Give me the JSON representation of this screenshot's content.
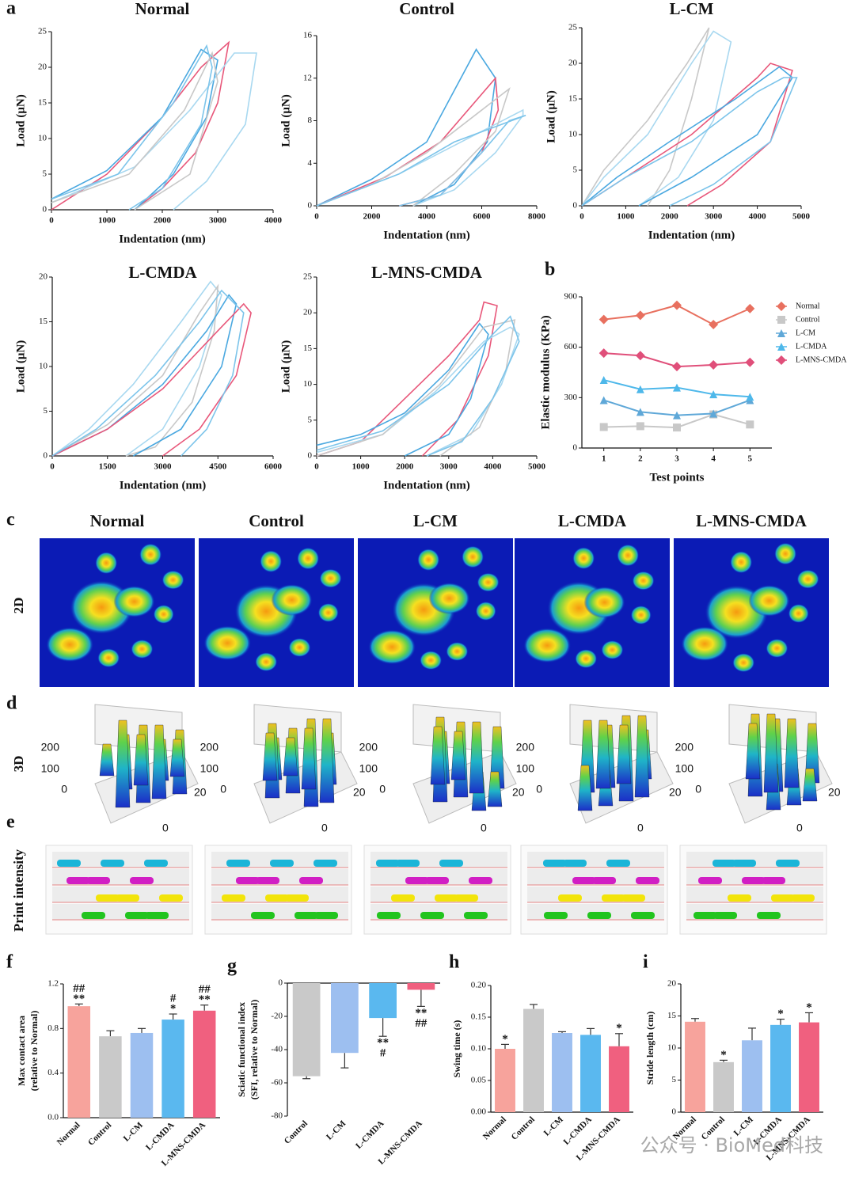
{
  "figure": {
    "panel_labels": [
      "a",
      "b",
      "c",
      "d",
      "e",
      "f",
      "g",
      "h",
      "i"
    ],
    "groups": [
      "Normal",
      "Control",
      "L-CM",
      "L-CMDA",
      "L-MNS-CMDA"
    ],
    "row_labels": [
      "2D",
      "3D",
      "Print intensity"
    ],
    "d_axis_labels": [
      200,
      100,
      0,
      20,
      0
    ],
    "watermark": "公众号 · BioMed科技"
  },
  "chart_data": [
    {
      "type": "line",
      "title": "Normal",
      "xlabel": "Indentation (nm)",
      "ylabel": "Load (μN)",
      "xlim": [
        0,
        4000
      ],
      "xticks": [
        0,
        1000,
        2000,
        3000,
        4000
      ],
      "ylim": [
        0,
        25
      ],
      "yticks": [
        0,
        5,
        10,
        15,
        20,
        25
      ],
      "series": [
        {
          "color": "#e8577a",
          "x": [
            0,
            1000,
            2000,
            2700,
            3200,
            3000,
            2600,
            2000,
            1500
          ],
          "values": [
            0,
            5,
            13,
            20,
            23.5,
            15,
            8,
            3,
            0
          ]
        },
        {
          "color": "#4aa8e0",
          "x": [
            0,
            1000,
            2000,
            2700,
            3000,
            2800,
            2200,
            1500
          ],
          "values": [
            1.5,
            5.5,
            13,
            22.5,
            21,
            13,
            5,
            0
          ]
        },
        {
          "color": "#a8d8f0",
          "x": [
            0,
            1500,
            2500,
            3300,
            3700,
            3500,
            2800,
            2200
          ],
          "values": [
            1,
            6,
            14,
            22,
            22,
            12,
            4,
            0
          ]
        },
        {
          "color": "#7cc4ea",
          "x": [
            0,
            1200,
            2200,
            2800,
            2900,
            2700,
            2000,
            1400
          ],
          "values": [
            1.5,
            5,
            15,
            23,
            20,
            12,
            3,
            0
          ]
        },
        {
          "color": "#c8c8c8",
          "x": [
            0,
            1400,
            2400,
            2900,
            3000,
            2500,
            1500
          ],
          "values": [
            1,
            5,
            14,
            22,
            18,
            5,
            0
          ]
        }
      ]
    },
    {
      "type": "line",
      "title": "Control",
      "xlabel": "Indentation (nm)",
      "ylabel": "Load (μN)",
      "xlim": [
        0,
        8000
      ],
      "xticks": [
        0,
        2000,
        4000,
        6000,
        8000
      ],
      "ylim": [
        0,
        16
      ],
      "yticks": [
        0,
        4,
        8,
        12,
        16
      ],
      "series": [
        {
          "color": "#4aa8e0",
          "x": [
            0,
            2000,
            4000,
            5800,
            6500,
            6200,
            5000,
            3500
          ],
          "values": [
            0,
            2.5,
            6,
            14.7,
            12,
            6,
            2,
            0
          ]
        },
        {
          "color": "#e8577a",
          "x": [
            0,
            2500,
            4500,
            6500,
            6600,
            6000,
            4500,
            3000
          ],
          "values": [
            0,
            2.7,
            6,
            12,
            9,
            5,
            1,
            0
          ]
        },
        {
          "color": "#a8d8f0",
          "x": [
            0,
            3000,
            6000,
            7500,
            7500,
            6500,
            5000,
            3500
          ],
          "values": [
            0,
            3,
            7,
            9,
            8.5,
            5,
            1.5,
            0
          ]
        },
        {
          "color": "#c8c8c8",
          "x": [
            0,
            2000,
            4000,
            6000,
            7000,
            6500,
            5000,
            3500
          ],
          "values": [
            0,
            2,
            5,
            9,
            11,
            7,
            3,
            0
          ]
        },
        {
          "color": "#7cc4ea",
          "x": [
            0,
            3000,
            5000,
            7600,
            7000,
            6000,
            4500,
            3000
          ],
          "values": [
            0,
            3,
            6,
            8.5,
            8,
            5,
            1,
            0
          ]
        }
      ]
    },
    {
      "type": "line",
      "title": "L-CM",
      "xlabel": "Indentation (nm)",
      "ylabel": "Load (μN)",
      "xlim": [
        0,
        5000
      ],
      "xticks": [
        0,
        1000,
        2000,
        3000,
        4000,
        5000
      ],
      "ylim": [
        0,
        25
      ],
      "yticks": [
        0,
        5,
        10,
        15,
        20,
        25
      ],
      "series": [
        {
          "color": "#c8c8c8",
          "x": [
            0,
            500,
            1500,
            2400,
            2900,
            2500,
            2000,
            1500
          ],
          "values": [
            0,
            5,
            12,
            20,
            25,
            15,
            5,
            0
          ]
        },
        {
          "color": "#a8d8f0",
          "x": [
            0,
            500,
            1500,
            2500,
            3000,
            3400,
            3000,
            2200,
            1300
          ],
          "values": [
            0,
            4,
            10,
            20,
            24.5,
            23,
            12,
            4,
            0
          ]
        },
        {
          "color": "#e8577a",
          "x": [
            0,
            1000,
            2500,
            4000,
            4300,
            4800,
            4300,
            3200,
            2400
          ],
          "values": [
            0,
            4,
            10,
            18,
            20,
            19,
            9,
            3,
            0
          ]
        },
        {
          "color": "#4aa8e0",
          "x": [
            0,
            800,
            2000,
            3500,
            4500,
            4800,
            4000,
            2500,
            1300
          ],
          "values": [
            0,
            4,
            9,
            15,
            19.5,
            18,
            10,
            4,
            0
          ]
        },
        {
          "color": "#7cc4ea",
          "x": [
            0,
            1000,
            2500,
            4000,
            4600,
            4900,
            4300,
            3000,
            2000
          ],
          "values": [
            0,
            4,
            9,
            16,
            18,
            18,
            9,
            3,
            0
          ]
        }
      ]
    },
    {
      "type": "line",
      "title": "L-CMDA",
      "xlabel": "Indentation (nm)",
      "ylabel": "Load (μN)",
      "xlim": [
        0,
        6000
      ],
      "xticks": [
        0,
        1500,
        3000,
        4500,
        6000
      ],
      "ylim": [
        0,
        20
      ],
      "yticks": [
        0,
        5,
        10,
        15,
        20
      ],
      "series": [
        {
          "color": "#a8d8f0",
          "x": [
            0,
            1000,
            2200,
            3500,
            4300,
            4600,
            4000,
            3000,
            2000
          ],
          "values": [
            0,
            3,
            8,
            15,
            19.5,
            18,
            10,
            3,
            0
          ]
        },
        {
          "color": "#c8c8c8",
          "x": [
            0,
            1500,
            3000,
            4000,
            4500,
            4400,
            3800,
            2800,
            2000
          ],
          "values": [
            0,
            3.5,
            9,
            16,
            19,
            14,
            6,
            1,
            0
          ]
        },
        {
          "color": "#4aa8e0",
          "x": [
            0,
            1500,
            3000,
            4200,
            4800,
            5000,
            4600,
            3500,
            2200
          ],
          "values": [
            0,
            3,
            8,
            14,
            18,
            17,
            10,
            3,
            0
          ]
        },
        {
          "color": "#e8577a",
          "x": [
            0,
            1500,
            3000,
            4500,
            5200,
            5400,
            5000,
            4000,
            3000
          ],
          "values": [
            0,
            3,
            7.5,
            14,
            17,
            16,
            9,
            3,
            0
          ]
        },
        {
          "color": "#7cc4ea",
          "x": [
            0,
            1200,
            2800,
            4000,
            4600,
            5200,
            4900,
            4200,
            3500
          ],
          "values": [
            0,
            3,
            9,
            15,
            18.5,
            16,
            9,
            3,
            0
          ]
        }
      ]
    },
    {
      "type": "line",
      "title": "L-MNS-CMDA",
      "xlabel": "Indentation (nm)",
      "ylabel": "Load (μN)",
      "xlim": [
        0,
        5000
      ],
      "xticks": [
        0,
        1000,
        2000,
        3000,
        4000,
        5000
      ],
      "ylim": [
        0,
        25
      ],
      "yticks": [
        0,
        5,
        10,
        15,
        20,
        25
      ],
      "series": [
        {
          "color": "#e8577a",
          "x": [
            0,
            1000,
            2000,
            3000,
            3700,
            3800,
            4100,
            3900,
            3200,
            2400
          ],
          "values": [
            0,
            2,
            8,
            14,
            19,
            21.5,
            21,
            14,
            5,
            0
          ]
        },
        {
          "color": "#4aa8e0",
          "x": [
            0,
            1000,
            2000,
            3000,
            3700,
            3900,
            3500,
            3000,
            2000
          ],
          "values": [
            1.5,
            3,
            6,
            12,
            18.5,
            17,
            8,
            3,
            0
          ]
        },
        {
          "color": "#a8d8f0",
          "x": [
            0,
            1500,
            2700,
            3800,
            4400,
            4600,
            4200,
            3500,
            2500
          ],
          "values": [
            0.5,
            3,
            9,
            16,
            18,
            17,
            10,
            3,
            0
          ]
        },
        {
          "color": "#c8c8c8",
          "x": [
            0,
            1500,
            2800,
            3800,
            4500,
            4300,
            3700,
            2800
          ],
          "values": [
            0,
            3,
            10,
            18,
            19,
            12,
            4,
            0
          ]
        },
        {
          "color": "#7cc4ea",
          "x": [
            0,
            1500,
            3000,
            4000,
            4400,
            4600,
            4000,
            3300,
            2500
          ],
          "values": [
            0.8,
            3.5,
            10,
            17,
            19.5,
            16,
            8,
            2,
            0
          ]
        }
      ]
    },
    {
      "type": "line",
      "xlabel": "Test points",
      "ylabel": "Elastic modulus (KPa)",
      "x": [
        1,
        2,
        3,
        4,
        5
      ],
      "xlim": [
        0.4,
        5.6
      ],
      "xticks": [
        1,
        2,
        3,
        4,
        5
      ],
      "ylim": [
        0,
        900
      ],
      "yticks": [
        0,
        300,
        600,
        900
      ],
      "legend": "right",
      "series": [
        {
          "name": "Normal",
          "color": "#e8705f",
          "marker": "diamond",
          "values": [
            765,
            790,
            850,
            735,
            830
          ]
        },
        {
          "name": "Control",
          "color": "#c8c8c8",
          "marker": "square",
          "values": [
            125,
            130,
            122,
            200,
            140
          ]
        },
        {
          "name": "L-CM",
          "color": "#5fa8d8",
          "marker": "triangle",
          "values": [
            285,
            215,
            195,
            205,
            285
          ]
        },
        {
          "name": "L-CMDA",
          "color": "#4eb8ea",
          "marker": "triangle",
          "values": [
            405,
            350,
            360,
            320,
            305
          ]
        },
        {
          "name": "L-MNS-CMDA",
          "color": "#e04f7a",
          "marker": "diamond",
          "values": [
            565,
            550,
            485,
            495,
            510
          ]
        }
      ]
    },
    {
      "type": "bar",
      "ylabel": [
        "Max contact area",
        "(relative to Normal)"
      ],
      "categories": [
        "Normal",
        "Control",
        "L-CM",
        "L-CMDA",
        "L-MNS-CMDA"
      ],
      "values": [
        1.0,
        0.73,
        0.76,
        0.88,
        0.96
      ],
      "errors": [
        0.02,
        0.05,
        0.04,
        0.05,
        0.05
      ],
      "colors": [
        "#f7a39c",
        "#c9c9c9",
        "#9dbff0",
        "#5ab8ef",
        "#f0607f"
      ],
      "significance": [
        [
          "##",
          "**"
        ],
        null,
        null,
        [
          "#",
          "*"
        ],
        [
          "##",
          "**"
        ]
      ],
      "ylim": [
        0,
        1.2
      ],
      "yticks": [
        {
          "value": 0,
          "label": "0.0"
        },
        0.4,
        0.8,
        1.2
      ]
    },
    {
      "type": "bar",
      "ylabel": [
        "Sciatic functional index",
        "(SFI, relative to Normal)"
      ],
      "categories": [
        "Control",
        "L-CM",
        "L-CMDA",
        "L-MNS-CMDA"
      ],
      "values": [
        -56,
        -42,
        -21,
        -4
      ],
      "errors": [
        1.5,
        9,
        11,
        10
      ],
      "colors": [
        "#c9c9c9",
        "#9dbff0",
        "#5ab8ef",
        "#f0607f"
      ],
      "significance": [
        null,
        null,
        [
          "**",
          "#"
        ],
        [
          "**",
          "##"
        ]
      ],
      "ylim": [
        -80,
        0
      ],
      "yticks": [
        0,
        -20,
        -40,
        -60,
        -80
      ]
    },
    {
      "type": "bar",
      "ylabel": "Swing time (s)",
      "categories": [
        "Normal",
        "Control",
        "L-CM",
        "L-CMDA",
        "L-MNS-CMDA"
      ],
      "values": [
        0.1,
        0.163,
        0.125,
        0.122,
        0.104
      ],
      "errors": [
        0.007,
        0.007,
        0.002,
        0.01,
        0.02
      ],
      "colors": [
        "#f7a39c",
        "#c9c9c9",
        "#9dbff0",
        "#5ab8ef",
        "#f0607f"
      ],
      "significance": [
        [
          "*"
        ],
        null,
        null,
        null,
        [
          "*"
        ]
      ],
      "ylim": [
        0,
        0.2
      ],
      "yticks": [
        {
          "value": 0,
          "label": "0.00"
        },
        {
          "value": 0.05,
          "label": "0.05"
        },
        {
          "value": 0.1,
          "label": "0.10"
        },
        {
          "value": 0.15,
          "label": "0.15"
        },
        {
          "value": 0.2,
          "label": "0.20"
        }
      ]
    },
    {
      "type": "bar",
      "ylabel": "Stride length (cm)",
      "categories": [
        "Normal",
        "Control",
        "L-CM",
        "L-CMDA",
        "L-MNS-CMDA"
      ],
      "values": [
        14.1,
        7.8,
        11.2,
        13.6,
        14.0
      ],
      "errors": [
        0.5,
        0.3,
        1.9,
        0.9,
        1.5
      ],
      "colors": [
        "#f7a39c",
        "#c9c9c9",
        "#9dbff0",
        "#5ab8ef",
        "#f0607f"
      ],
      "significance": [
        null,
        [
          "*"
        ],
        null,
        [
          "*"
        ],
        [
          "*"
        ]
      ],
      "ylim": [
        0,
        20
      ],
      "yticks": [
        0,
        5,
        10,
        15,
        20
      ]
    }
  ]
}
